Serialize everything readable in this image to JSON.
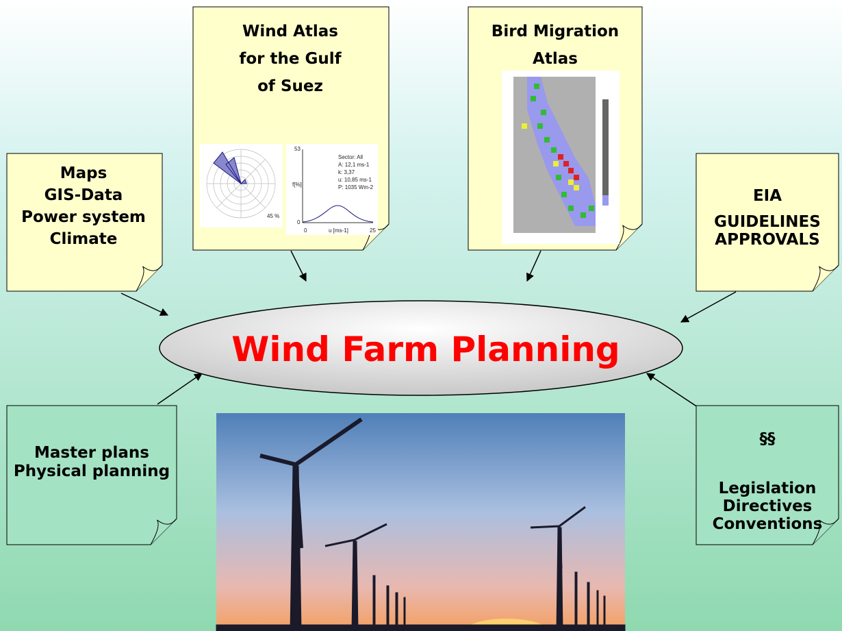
{
  "center": {
    "label": "Wind Farm Planning"
  },
  "notes": [
    {
      "lines": [
        "Maps",
        "GIS-Data",
        "Power system",
        "Climate"
      ]
    },
    {
      "lines": [
        "Wind Atlas",
        "for the Gulf",
        "of Suez"
      ]
    },
    {
      "lines": [
        "Bird Migration",
        "Atlas"
      ]
    },
    {
      "lines": [
        "EIA",
        "GUIDELINES",
        "APPROVALS"
      ]
    },
    {
      "lines": [
        "Master plans",
        "Physical planning"
      ]
    },
    {
      "lines": [
        "§§",
        "Legislation",
        "Directives",
        "Conventions"
      ]
    }
  ],
  "wind_atlas_chart": {
    "polar_label": "45 %",
    "y_axis_label": "f[%]",
    "y_max": "53",
    "y_min": "0",
    "x_axis_label": "u [ms-1]",
    "x_min": "0",
    "x_max": "25",
    "stats": [
      "Sector: All",
      "A: 12,1 ms-1",
      "k: 3,37",
      "u: 10,85 ms-1",
      "P: 1035 Wm-2"
    ]
  }
}
